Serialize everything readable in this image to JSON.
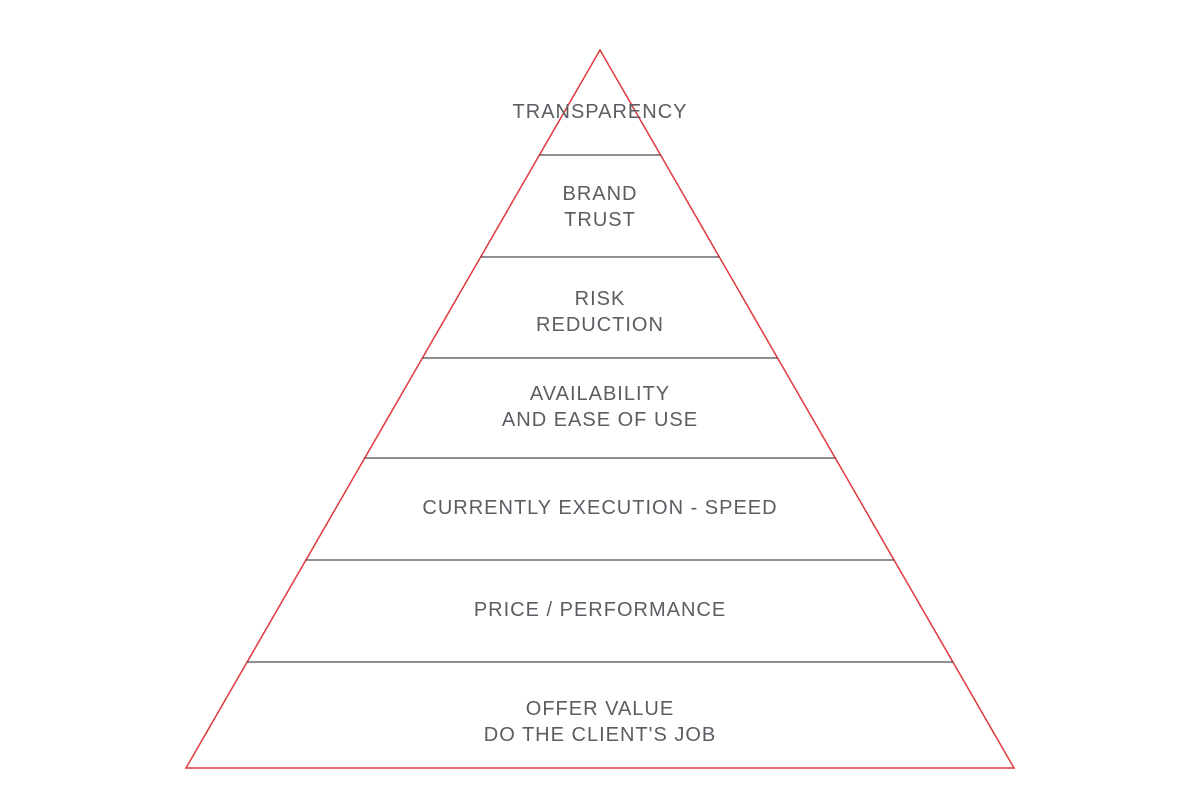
{
  "colors": {
    "outline": "#e0393e",
    "divider": "#222222",
    "text": "#5a5d62"
  },
  "levels": [
    {
      "lines": [
        "TRANSPARENCY"
      ]
    },
    {
      "lines": [
        "BRAND",
        "TRUST"
      ]
    },
    {
      "lines": [
        "RISK",
        "REDUCTION"
      ]
    },
    {
      "lines": [
        "AVAILABILITY",
        "AND EASE OF USE"
      ]
    },
    {
      "lines": [
        "CURRENTLY EXECUTION - SPEED"
      ]
    },
    {
      "lines": [
        "PRICE / PERFORMANCE"
      ]
    },
    {
      "lines": [
        "OFFER VALUE",
        "DO THE CLIENT'S JOB"
      ]
    }
  ]
}
